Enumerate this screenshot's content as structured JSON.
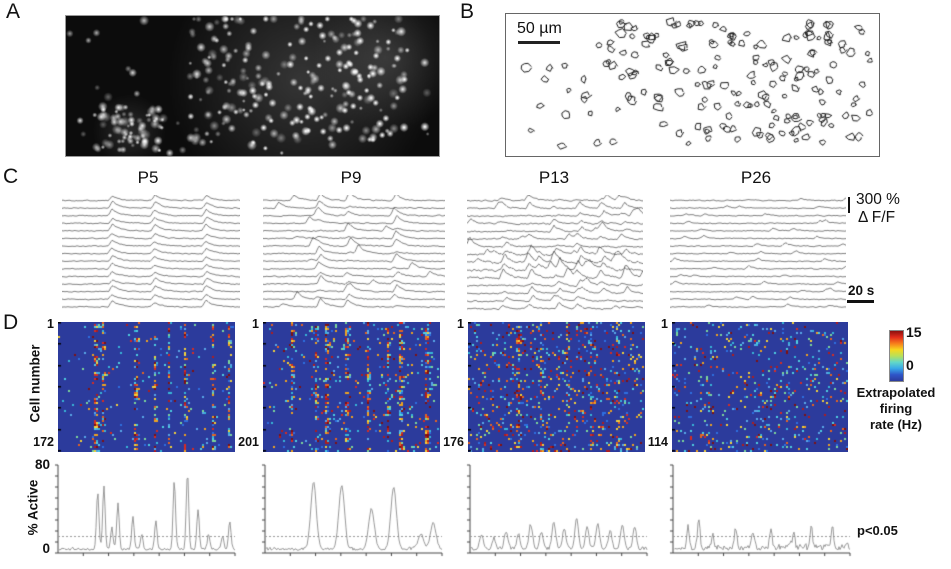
{
  "figure": {
    "panel_labels": {
      "a": "A",
      "b": "B",
      "c": "C",
      "d": "D"
    },
    "panel_b": {
      "scale_label": "50 µm"
    },
    "panel_c": {
      "titles": [
        "P5",
        "P9",
        "P13",
        "P26"
      ],
      "scale_amplitude": "300 %",
      "scale_unit": "Δ F/F",
      "scale_time": "20 s",
      "groups": [
        {
          "title": "P5",
          "events": [
            0.27,
            0.51,
            0.8
          ],
          "amp": [
            4,
            7
          ],
          "tau": 7,
          "noise": 0.9,
          "extra": 0,
          "jitter": 0.004,
          "skip": 0,
          "messy": []
        },
        {
          "title": "P9",
          "events": [
            0.3,
            0.46,
            0.72
          ],
          "amp": [
            2,
            9
          ],
          "tau": 6,
          "noise": 1.0,
          "extra": 1,
          "jitter": 0.01,
          "skip": 0.25,
          "messy": []
        },
        {
          "title": "P13",
          "events": [
            0.2,
            0.35,
            0.5,
            0.63,
            0.76,
            0.88
          ],
          "amp": [
            2,
            7
          ],
          "tau": 5,
          "noise": 1.3,
          "extra": 2,
          "jitter": 0.02,
          "skip": 0.3,
          "messy": [
            7,
            8,
            9,
            10
          ]
        },
        {
          "title": "P26",
          "events": [],
          "amp": [
            1.5,
            3.5
          ],
          "tau": 4,
          "noise": 0.9,
          "extra": 3,
          "jitter": 0,
          "skip": 0,
          "messy": []
        }
      ]
    },
    "panel_d": {
      "y_axis_label": "Cell number",
      "heatmaps": [
        {
          "title": "P5",
          "first_cell": "1",
          "last_cell": "172",
          "render": {
            "scatter": 0.025,
            "warm": 0.3,
            "streaks": [
              0.21,
              0.26,
              0.44,
              0.55,
              0.63,
              0.72,
              0.88,
              0.97
            ],
            "streak_density": 0.5,
            "wide": 0.3
          }
        },
        {
          "title": "P9",
          "first_cell": "1",
          "last_cell": "201",
          "render": {
            "scatter": 0.055,
            "warm": 0.4,
            "streaks": [
              0.17,
              0.3,
              0.36,
              0.47,
              0.6,
              0.71,
              0.78,
              0.93
            ],
            "streak_density": 0.55,
            "wide": 0.55
          }
        },
        {
          "title": "P13",
          "first_cell": "1",
          "last_cell": "176",
          "render": {
            "scatter": 0.115,
            "warm": 0.55,
            "streaks": [
              0.28,
              0.42,
              0.56,
              0.7,
              0.85
            ],
            "streak_density": 0.3,
            "wide": 0.3
          }
        },
        {
          "title": "P26",
          "first_cell": "1",
          "last_cell": "114",
          "render": {
            "scatter": 0.09,
            "warm": 0.45,
            "streaks": [],
            "streak_density": 0,
            "wide": 0
          }
        }
      ],
      "colorbar": {
        "max": "15",
        "min": "0",
        "label_lines": [
          "Extrapolated",
          "firing",
          "rate (Hz)"
        ],
        "gradient": [
          "#8c0f0f",
          "#e22c1c",
          "#f77e1b",
          "#f7d71e",
          "#b8e05a",
          "#62d8c8",
          "#38a8e8",
          "#2f55c8",
          "#2c3b9c"
        ]
      },
      "active_plots": {
        "y_max": "80",
        "y_min": "0",
        "y_label": "% Active",
        "significance": "p<0.05",
        "threshold_percent": 15,
        "series": [
          {
            "name": "P5",
            "sigma": 0.007,
            "noise": 3.5,
            "peaks": [
              [
                0.22,
                52
              ],
              [
                0.255,
                57
              ],
              [
                0.3,
                20
              ],
              [
                0.335,
                42
              ],
              [
                0.42,
                30
              ],
              [
                0.47,
                14
              ],
              [
                0.55,
                26
              ],
              [
                0.655,
                62
              ],
              [
                0.73,
                70
              ],
              [
                0.79,
                36
              ],
              [
                0.85,
                14
              ],
              [
                0.93,
                12
              ],
              [
                0.97,
                26
              ]
            ]
          },
          {
            "name": "P9",
            "sigma": 0.016,
            "noise": 4.0,
            "peaks": [
              [
                0.27,
                60
              ],
              [
                0.43,
                58
              ],
              [
                0.6,
                36
              ],
              [
                0.725,
                56
              ],
              [
                0.88,
                14
              ],
              [
                0.95,
                24
              ]
            ]
          },
          {
            "name": "P13",
            "sigma": 0.01,
            "noise": 5.0,
            "peaks": [
              [
                0.06,
                14
              ],
              [
                0.13,
                10
              ],
              [
                0.2,
                16
              ],
              [
                0.27,
                12
              ],
              [
                0.34,
                22
              ],
              [
                0.4,
                15
              ],
              [
                0.47,
                25
              ],
              [
                0.53,
                18
              ],
              [
                0.6,
                28
              ],
              [
                0.66,
                20
              ],
              [
                0.72,
                24
              ],
              [
                0.79,
                16
              ],
              [
                0.86,
                22
              ],
              [
                0.93,
                18
              ]
            ]
          },
          {
            "name": "P26",
            "sigma": 0.007,
            "noise": 9.0,
            "peaks": [
              [
                0.08,
                20
              ],
              [
                0.14,
                26
              ],
              [
                0.22,
                12
              ],
              [
                0.35,
                18
              ],
              [
                0.45,
                14
              ],
              [
                0.55,
                16
              ],
              [
                0.68,
                14
              ],
              [
                0.78,
                18
              ],
              [
                0.9,
                20
              ]
            ]
          }
        ]
      }
    },
    "colors": {
      "heatmap_bg": "#2c3b9c",
      "trace": "#3b3b3b",
      "active_trace": "#8c8c8c",
      "threshold": "#999999",
      "warm_dots": [
        "#7f1010",
        "#b01c1c",
        "#d92b20",
        "#e8641e",
        "#f0a31f",
        "#f3d23a"
      ],
      "cool_dots": [
        "#38b8d8",
        "#4fd0e0",
        "#58a8e8",
        "#7dd89a",
        "#2e6fe0"
      ]
    },
    "seeds": {
      "a": 7,
      "b": 13,
      "traces": [
        101,
        102,
        103,
        104
      ],
      "heatmaps": [
        201,
        202,
        203,
        204
      ],
      "active": [
        301,
        302,
        303,
        304
      ]
    }
  },
  "chart_data": [
    {
      "type": "heatmap",
      "title": "Extrapolated firing rate rasters",
      "ylabel": "Cell number",
      "panels": [
        {
          "age": "P5",
          "cells": 172
        },
        {
          "age": "P9",
          "cells": 201
        },
        {
          "age": "P13",
          "cells": 176
        },
        {
          "age": "P26",
          "cells": 114
        }
      ],
      "colorbar": {
        "label": "Extrapolated firing rate (Hz)",
        "min": 0,
        "max": 15
      }
    },
    {
      "type": "line",
      "title": "% Active vs time",
      "ylabel": "% Active",
      "ylim": [
        0,
        80
      ],
      "annotation": "p<0.05 threshold line at ~15% active",
      "panels": [
        "P5",
        "P9",
        "P13",
        "P26"
      ]
    }
  ]
}
